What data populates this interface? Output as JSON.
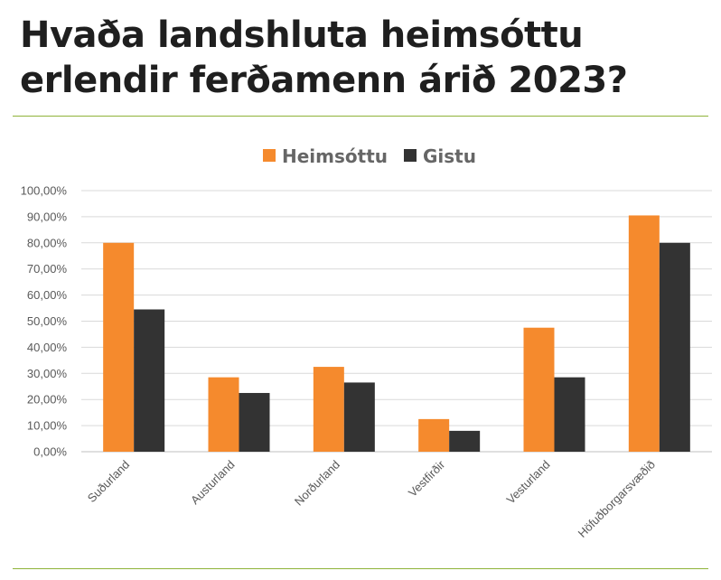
{
  "title": "Hvaða landshluta heimsóttu erlendir ferðamenn árið 2023?",
  "chart_data": {
    "type": "bar",
    "categories": [
      "Suðurland",
      "Austurland",
      "Norðurland",
      "Vestfirðir",
      "Vesturland",
      "Höfuðborgarsvæðið"
    ],
    "series": [
      {
        "name": "Heimsóttu",
        "color": "#f58a2d",
        "values": [
          80,
          28.5,
          32.5,
          12.5,
          47.5,
          90.5
        ]
      },
      {
        "name": "Gistu",
        "color": "#333333",
        "values": [
          54.5,
          22.5,
          26.5,
          8,
          28.5,
          80
        ]
      }
    ],
    "y_ticks": [
      "0,00%",
      "10,00%",
      "20,00%",
      "30,00%",
      "40,00%",
      "50,00%",
      "60,00%",
      "70,00%",
      "80,00%",
      "90,00%",
      "100,00%"
    ],
    "ylim": [
      0,
      100
    ],
    "legend_position": "top-center",
    "grid": true
  }
}
